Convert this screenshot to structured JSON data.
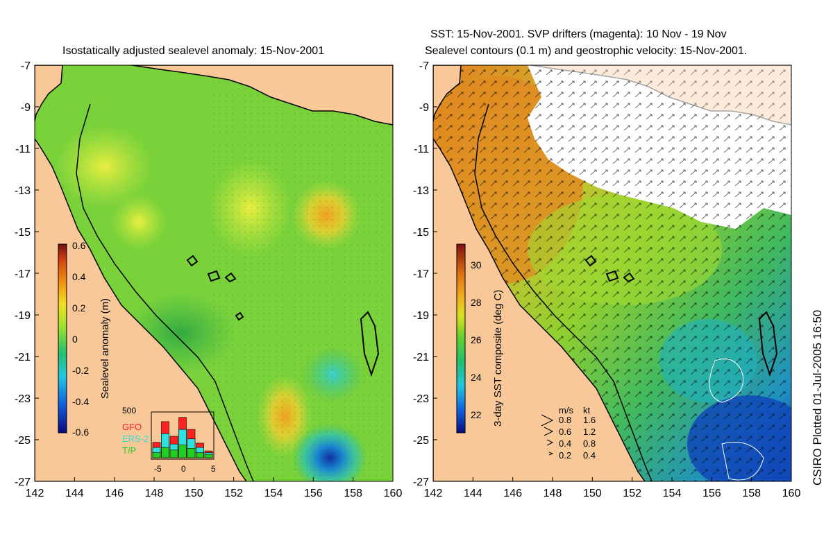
{
  "left_panel": {
    "title": "Isostatically adjusted sealevel anomaly: 15-Nov-2001",
    "colorbar": {
      "label": "Sealevel anomaly (m)",
      "ticks": [
        "0.6",
        "0.4",
        "0.2",
        "0",
        "-0.2",
        "-0.4",
        "-0.6"
      ],
      "range": [
        -0.6,
        0.6
      ]
    },
    "histogram": {
      "ymax_label": "500",
      "xticks": [
        "-5",
        "0",
        "5"
      ],
      "legend": [
        {
          "name": "GFO",
          "color": "#ff2020"
        },
        {
          "name": "ERS-2",
          "color": "#30e0e0"
        },
        {
          "name": "T/P",
          "color": "#20d020"
        }
      ],
      "gfo": [
        180,
        420,
        250,
        470,
        330,
        170,
        80
      ],
      "ers2": [
        120,
        280,
        160,
        330,
        220,
        120,
        60
      ],
      "tp": [
        60,
        120,
        90,
        150,
        110,
        60,
        40
      ]
    }
  },
  "right_panel": {
    "title_line1": "SST: 15-Nov-2001. SVP drifters (magenta): 10 Nov - 19 Nov",
    "title_line2": "Sealevel contours (0.1 m) and geostrophic velocity: 15-Nov-2001.",
    "colorbar": {
      "label": "3-day SST composite (deg C)",
      "ticks": [
        "30",
        "28",
        "26",
        "24",
        "22"
      ],
      "range": [
        21,
        31
      ]
    },
    "velocity_legend": {
      "header_ms": "m/s",
      "header_kt": "kt",
      "rows": [
        {
          "ms": "0.8",
          "kt": "1.6"
        },
        {
          "ms": "0.6",
          "kt": "1.2"
        },
        {
          "ms": "0.4",
          "kt": "0.8"
        },
        {
          "ms": "0.2",
          "kt": "0.4"
        }
      ]
    }
  },
  "axes": {
    "lat_labels": [
      "-7",
      "-9",
      "-11",
      "-13",
      "-15",
      "-17",
      "-19",
      "-21",
      "-23",
      "-25",
      "-27"
    ],
    "lon_labels": [
      "142",
      "144",
      "146",
      "148",
      "150",
      "152",
      "154",
      "156",
      "158",
      "160"
    ],
    "lat_range": [
      -27,
      -7
    ],
    "lon_range": [
      142,
      160
    ]
  },
  "credit": "CSIRO Plotted 01-Jul-2005 16:50",
  "colors": {
    "land": "#f8c898",
    "sea_base": "#7ad23a",
    "cloud": "#ffffff"
  }
}
